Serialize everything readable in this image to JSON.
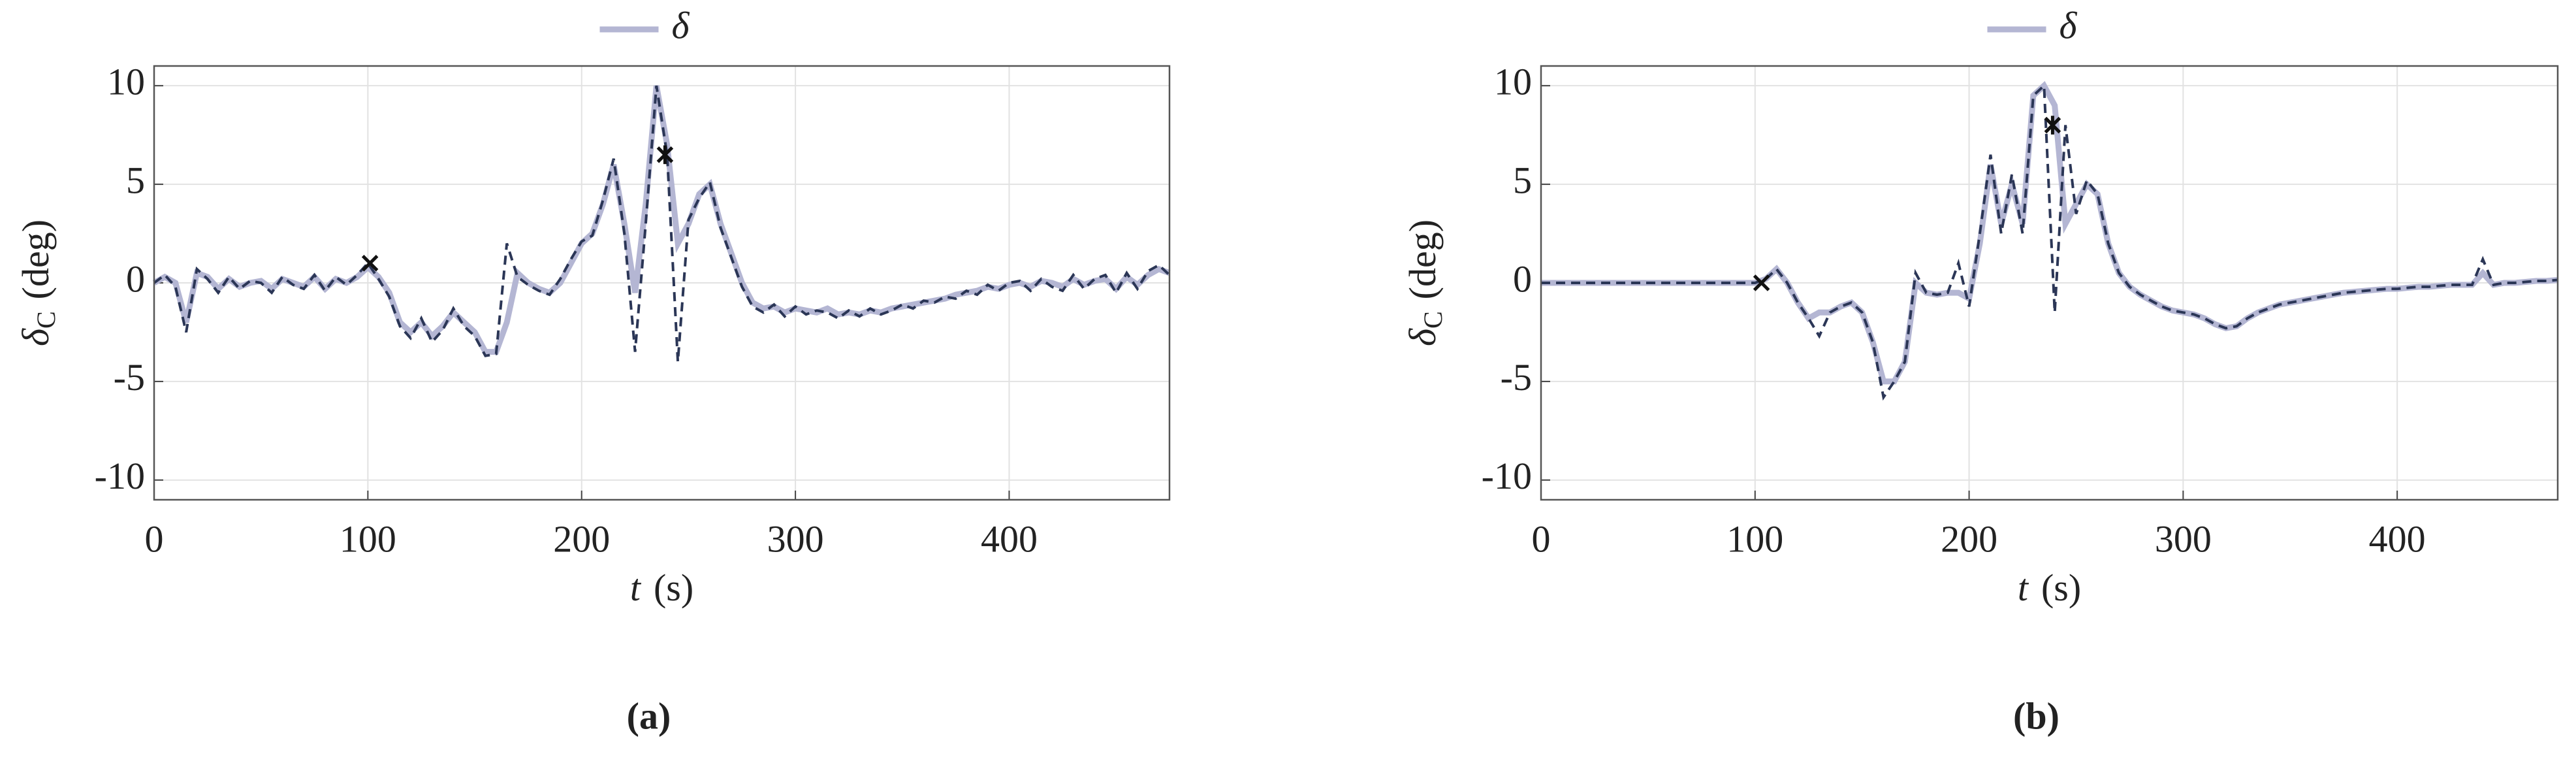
{
  "chart_data": [
    {
      "type": "line",
      "panel_label": "(a)",
      "ylabel_parts": [
        "δ",
        "C",
        "(deg)"
      ],
      "xlabel_parts": [
        "t",
        "(s)"
      ],
      "xlim": [
        0,
        475
      ],
      "xticks": [
        0,
        100,
        200,
        300,
        400
      ],
      "ylim": [
        -11,
        11
      ],
      "yticks": [
        -10,
        -5,
        0,
        5,
        10
      ],
      "grid": true,
      "x": [
        0,
        5,
        10,
        15,
        20,
        25,
        30,
        35,
        40,
        45,
        50,
        55,
        60,
        65,
        70,
        75,
        80,
        85,
        90,
        95,
        100,
        105,
        110,
        115,
        120,
        125,
        130,
        135,
        140,
        145,
        150,
        155,
        160,
        165,
        170,
        175,
        180,
        185,
        190,
        195,
        200,
        205,
        210,
        215,
        220,
        225,
        230,
        235,
        240,
        245,
        250,
        255,
        260,
        265,
        270,
        275,
        280,
        285,
        290,
        295,
        300,
        305,
        310,
        315,
        320,
        325,
        330,
        335,
        340,
        345,
        350,
        355,
        360,
        365,
        370,
        375,
        380,
        385,
        390,
        395,
        400,
        405,
        410,
        415,
        420,
        425,
        430,
        435,
        440,
        445,
        450,
        455,
        460,
        465,
        470,
        475
      ],
      "series": [
        {
          "name": "δ",
          "color": "#b4b6d3",
          "dash": false,
          "values": [
            0,
            0.3,
            0,
            -2,
            0.5,
            0.3,
            -0.3,
            0.2,
            -0.2,
            0,
            0.1,
            -0.3,
            0.2,
            0,
            -0.2,
            0.3,
            -0.3,
            0.2,
            0,
            0.3,
            0.8,
            0.3,
            -0.5,
            -2,
            -2.5,
            -2,
            -2.7,
            -2.2,
            -1.5,
            -2,
            -2.5,
            -3.5,
            -3.5,
            -2,
            0.5,
            0,
            -0.3,
            -0.5,
            0,
            1,
            2,
            2.5,
            4,
            6,
            3,
            -0.5,
            4,
            10,
            7,
            2,
            3,
            4.5,
            5,
            3,
            1.5,
            0,
            -1,
            -1.3,
            -1.2,
            -1.5,
            -1.3,
            -1.4,
            -1.5,
            -1.3,
            -1.6,
            -1.5,
            -1.6,
            -1.4,
            -1.5,
            -1.3,
            -1.2,
            -1.1,
            -1,
            -0.9,
            -0.8,
            -0.6,
            -0.5,
            -0.4,
            -0.2,
            -0.3,
            -0.1,
            0,
            -0.2,
            0.1,
            0,
            -0.2,
            0.2,
            -0.1,
            0.1,
            0.2,
            -0.3,
            0.3,
            -0.1,
            0.4,
            0.7,
            0.5
          ]
        },
        {
          "color": "#2b3656",
          "dash": true,
          "values": [
            0,
            0.4,
            -0.2,
            -2.5,
            0.7,
            0.2,
            -0.5,
            0.3,
            -0.3,
            0.1,
            0,
            -0.5,
            0.3,
            -0.1,
            -0.3,
            0.4,
            -0.4,
            0.3,
            -0.1,
            0.4,
            1,
            0.2,
            -0.7,
            -2.2,
            -2.8,
            -1.8,
            -3,
            -2.4,
            -1.3,
            -2.2,
            -2.7,
            -3.7,
            -3.6,
            2,
            0.3,
            -0.1,
            -0.4,
            -0.6,
            0.2,
            1.2,
            2.1,
            2.4,
            4.2,
            6.3,
            2.5,
            -3.5,
            3,
            10,
            6.5,
            -4,
            3.2,
            4.3,
            5.1,
            2.8,
            1.3,
            -0.2,
            -1.2,
            -1.5,
            -1.1,
            -1.7,
            -1.2,
            -1.6,
            -1.4,
            -1.5,
            -1.8,
            -1.4,
            -1.7,
            -1.3,
            -1.6,
            -1.4,
            -1.1,
            -1.3,
            -0.9,
            -1,
            -0.7,
            -0.8,
            -0.4,
            -0.6,
            -0.1,
            -0.4,
            0,
            0.1,
            -0.4,
            0.2,
            -0.2,
            -0.4,
            0.4,
            -0.3,
            0.2,
            0.4,
            -0.5,
            0.5,
            -0.3,
            0.6,
            0.9,
            0.4
          ]
        }
      ],
      "points": [
        {
          "x": 101,
          "y": 1,
          "marker": "cross"
        },
        {
          "x": 239,
          "y": 6.5,
          "marker": "star"
        }
      ]
    },
    {
      "type": "line",
      "panel_label": "(b)",
      "ylabel_parts": [
        "δ",
        "C",
        "(deg)"
      ],
      "xlabel_parts": [
        "t",
        "(s)"
      ],
      "xlim": [
        0,
        475
      ],
      "xticks": [
        0,
        100,
        200,
        300,
        400
      ],
      "ylim": [
        -11,
        11
      ],
      "yticks": [
        -10,
        -5,
        0,
        5,
        10
      ],
      "grid": true,
      "x": [
        0,
        5,
        10,
        15,
        20,
        25,
        30,
        35,
        40,
        45,
        50,
        55,
        60,
        65,
        70,
        75,
        80,
        85,
        90,
        95,
        100,
        105,
        110,
        115,
        120,
        125,
        130,
        135,
        140,
        145,
        150,
        155,
        160,
        165,
        170,
        175,
        180,
        185,
        190,
        195,
        200,
        205,
        210,
        215,
        220,
        225,
        230,
        235,
        240,
        245,
        250,
        255,
        260,
        265,
        270,
        275,
        280,
        285,
        290,
        295,
        300,
        305,
        310,
        315,
        320,
        325,
        330,
        335,
        340,
        345,
        350,
        355,
        360,
        365,
        370,
        375,
        380,
        385,
        390,
        395,
        400,
        405,
        410,
        415,
        420,
        425,
        430,
        435,
        440,
        445,
        450,
        455,
        460,
        465,
        470,
        475
      ],
      "series": [
        {
          "name": "δ",
          "color": "#b4b6d3",
          "dash": false,
          "values": [
            0,
            0,
            0,
            0,
            0,
            0,
            0,
            0,
            0,
            0,
            0,
            0,
            0,
            0,
            0,
            0,
            0,
            0,
            0,
            0,
            0,
            0.2,
            0.7,
            0,
            -1,
            -1.8,
            -1.5,
            -1.5,
            -1.2,
            -1,
            -1.5,
            -3,
            -5,
            -5,
            -4,
            0,
            -0.5,
            -0.6,
            -0.5,
            -0.5,
            -0.8,
            2,
            6,
            3,
            5,
            3,
            9.5,
            10,
            9,
            3,
            4,
            5,
            4.5,
            2,
            0.5,
            -0.2,
            -0.6,
            -0.9,
            -1.2,
            -1.4,
            -1.5,
            -1.6,
            -1.8,
            -2.1,
            -2.3,
            -2.2,
            -1.8,
            -1.5,
            -1.3,
            -1.1,
            -1,
            -0.9,
            -0.8,
            -0.7,
            -0.6,
            -0.5,
            -0.45,
            -0.4,
            -0.35,
            -0.3,
            -0.3,
            -0.25,
            -0.2,
            -0.2,
            -0.15,
            -0.1,
            -0.1,
            -0.1,
            0.5,
            -0.1,
            0,
            0,
            0.05,
            0.1,
            0.1,
            0.15
          ]
        },
        {
          "color": "#2b3656",
          "dash": true,
          "values": [
            0,
            0,
            0,
            0,
            0,
            0,
            0,
            0,
            0,
            0,
            0,
            0,
            0,
            0,
            0,
            0,
            0,
            0,
            0,
            0,
            0,
            0.2,
            0.7,
            0,
            -1,
            -1.8,
            -2.7,
            -1.5,
            -1.2,
            -1,
            -1.5,
            -3,
            -5.8,
            -5,
            -4,
            0.5,
            -0.5,
            -0.6,
            -0.5,
            1,
            -1.2,
            2.5,
            6.5,
            2.5,
            5.5,
            2.5,
            9.5,
            10,
            -1.5,
            8,
            3.5,
            5.2,
            4.5,
            2,
            0.5,
            -0.2,
            -0.6,
            -0.9,
            -1.2,
            -1.4,
            -1.5,
            -1.6,
            -1.8,
            -2.1,
            -2.3,
            -2.2,
            -1.8,
            -1.5,
            -1.3,
            -1.1,
            -1,
            -0.9,
            -0.8,
            -0.7,
            -0.6,
            -0.5,
            -0.45,
            -0.4,
            -0.35,
            -0.3,
            -0.3,
            -0.25,
            -0.2,
            -0.2,
            -0.15,
            -0.1,
            -0.1,
            -0.1,
            1.2,
            -0.1,
            0,
            0,
            0.05,
            0.1,
            0.1,
            0.15
          ]
        }
      ],
      "points": [
        {
          "x": 103,
          "y": 0,
          "marker": "cross"
        },
        {
          "x": 239,
          "y": 8,
          "marker": "star"
        }
      ]
    }
  ]
}
